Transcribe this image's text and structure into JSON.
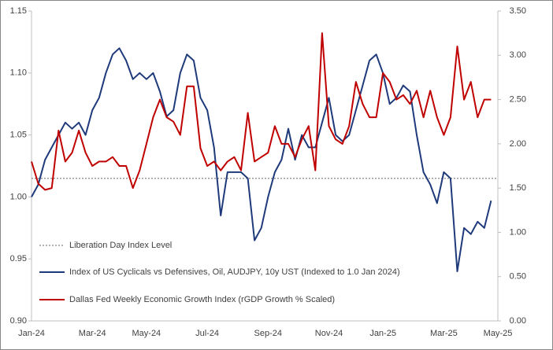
{
  "chart_data": {
    "type": "line",
    "categories": [
      "Jan-24",
      null,
      null,
      null,
      null,
      null,
      null,
      null,
      null,
      "Mar-24",
      null,
      null,
      null,
      null,
      null,
      null,
      null,
      "May-24",
      null,
      null,
      null,
      null,
      null,
      null,
      null,
      null,
      "Jul-24",
      null,
      null,
      null,
      null,
      null,
      null,
      null,
      null,
      "Sep-24",
      null,
      null,
      null,
      null,
      null,
      null,
      null,
      null,
      "Nov-24",
      null,
      null,
      null,
      null,
      null,
      null,
      null,
      "Jan-25",
      null,
      null,
      null,
      null,
      null,
      null,
      null,
      null,
      "Mar-25",
      null,
      null,
      null,
      null,
      null,
      null,
      null,
      "May-25"
    ],
    "series": [
      {
        "name": "Index of US Cyclicals vs Defensives, Oil, AUDJPY, 10y UST (Indexed to 1.0 Jan 2024)",
        "color": "#1f3a7a",
        "values": [
          1.0,
          1.01,
          1.03,
          1.04,
          1.05,
          1.06,
          1.055,
          1.06,
          1.05,
          1.07,
          1.08,
          1.1,
          1.115,
          1.12,
          1.11,
          1.095,
          1.1,
          1.095,
          1.1,
          1.085,
          1.065,
          1.07,
          1.1,
          1.115,
          1.11,
          1.08,
          1.07,
          1.04,
          0.985,
          1.02,
          1.02,
          1.02,
          1.015,
          0.965,
          0.975,
          1.0,
          1.02,
          1.03,
          1.055,
          1.03,
          1.05,
          1.04,
          1.04,
          1.06,
          1.08,
          1.05,
          1.045,
          1.05,
          1.07,
          1.09,
          1.11,
          1.115,
          1.1,
          1.075,
          1.08,
          1.09,
          1.085,
          1.05,
          1.02,
          1.01,
          0.995,
          1.02,
          1.015,
          0.94,
          0.975,
          0.97,
          0.98,
          0.975,
          0.997,
          null
        ]
      },
      {
        "name": "Dallas Fed Weekly Economic Growth Index (rGDP Growth % Scaled)",
        "color": "#c00000",
        "axis": "y2",
        "values": [
          1.8,
          1.55,
          1.48,
          1.5,
          2.15,
          1.8,
          1.9,
          2.15,
          1.9,
          1.75,
          1.8,
          1.8,
          1.85,
          1.75,
          1.75,
          1.5,
          1.7,
          2.0,
          2.3,
          2.5,
          2.3,
          2.25,
          2.1,
          2.65,
          2.65,
          1.95,
          1.75,
          1.8,
          1.7,
          1.8,
          1.85,
          1.7,
          2.35,
          1.8,
          1.85,
          1.9,
          2.2,
          2.0,
          2.0,
          1.85,
          2.05,
          2.2,
          1.7,
          3.25,
          2.2,
          2.05,
          2.0,
          2.2,
          2.7,
          2.45,
          2.3,
          2.3,
          2.8,
          2.7,
          2.5,
          2.55,
          2.45,
          2.6,
          2.3,
          2.6,
          2.3,
          2.1,
          2.3,
          3.1,
          2.5,
          2.7,
          2.3,
          2.5,
          2.5,
          null
        ]
      }
    ],
    "reference": {
      "name": "Liberation Day Index Level",
      "value": 1.015,
      "color": "#999999"
    },
    "ylim": [
      0.9,
      1.15
    ],
    "yticks": [
      {
        "value": 0.9,
        "label": "0.90"
      },
      0.95,
      {
        "value": 1.0,
        "label": "1.00"
      },
      1.05,
      {
        "value": 1.1,
        "label": "1.10"
      },
      1.15
    ],
    "y2lim": [
      0,
      3.5
    ],
    "y2ticks": [
      {
        "value": 0,
        "label": "0.00"
      },
      {
        "value": 0.5,
        "label": "0.50"
      },
      {
        "value": 1,
        "label": "1.00"
      },
      {
        "value": 1.5,
        "label": "1.50"
      },
      {
        "value": 2,
        "label": "2.00"
      },
      {
        "value": 2.5,
        "label": "2.50"
      },
      {
        "value": 3,
        "label": "3.00"
      },
      {
        "value": 3.5,
        "label": "3.50"
      }
    ],
    "legend": "lower-left"
  }
}
